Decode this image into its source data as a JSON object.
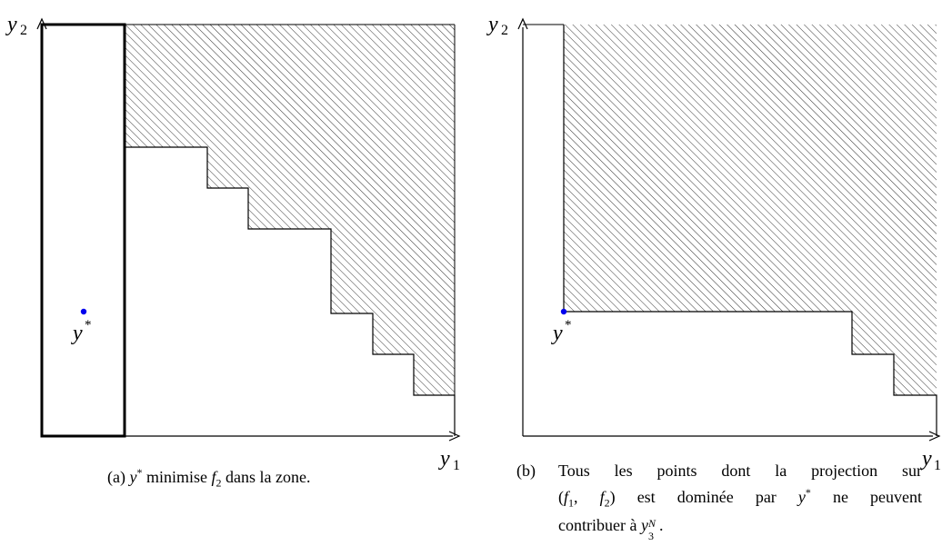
{
  "axes": {
    "x_label": "y",
    "x_sub": "1",
    "y_label": "y",
    "y_sub": "2"
  },
  "point": {
    "label": "y",
    "sup": "*",
    "color": "#0000ee"
  },
  "captions": {
    "a": {
      "tag": "(a)",
      "pt": "y",
      "pt_sup": "*",
      "verb": "minimise",
      "f": "f",
      "f_sub": "2",
      "rest": "dans la zone."
    },
    "b": {
      "tag": "(b)",
      "line1": "Tous les points dont la projection sur",
      "f1": "f",
      "f1_sub": "1",
      "f2": "f",
      "f2_sub": "2",
      "mid": "est dominée par",
      "pt": "y",
      "pt_sup": "*",
      "end2": "ne peuvent",
      "line3": "contribuer à",
      "yn": "y",
      "yn_sup": "N",
      "yn_sub": "3"
    }
  }
}
